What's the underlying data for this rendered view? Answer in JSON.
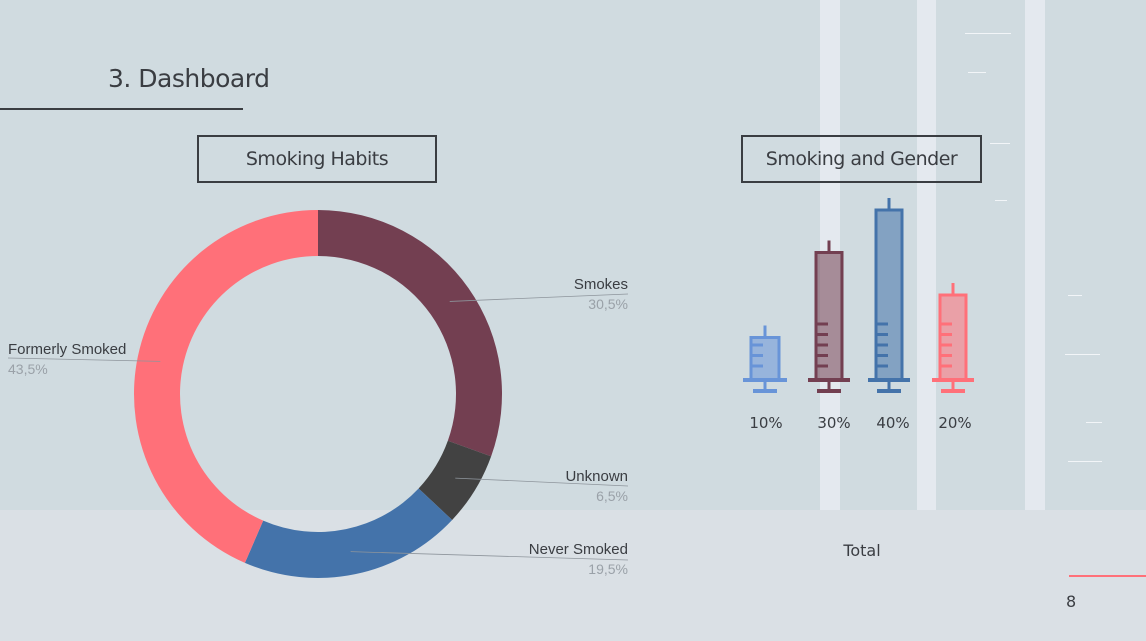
{
  "slide": {
    "section_title": "3. Dashboard",
    "page_number": "8"
  },
  "colors": {
    "background": "#d0dbe0",
    "dark": "#3a3d42",
    "accent": "#ff7079"
  },
  "chart_data": [
    {
      "type": "pie",
      "title": "Smoking Habits",
      "donut": true,
      "slices": [
        {
          "label": "Smokes",
          "value_text": "30,5%",
          "value": 30.5,
          "color": "#733f51"
        },
        {
          "label": "Unknown",
          "value_text": "6,5%",
          "value": 6.5,
          "color": "#424242"
        },
        {
          "label": "Never Smoked",
          "value_text": "19,5%",
          "value": 19.5,
          "color": "#4473aa"
        },
        {
          "label": "Formerly Smoked",
          "value_text": "43,5%",
          "value": 43.5,
          "color": "#ff7079"
        }
      ]
    },
    {
      "type": "bar",
      "title": "Smoking and Gender",
      "xlabel": "Total",
      "marker": "syringe",
      "categories": [
        "10%",
        "30%",
        "40%",
        "20%"
      ],
      "values": [
        10,
        30,
        40,
        20
      ],
      "colors": [
        "#6894d8",
        "#733f51",
        "#4473aa",
        "#ff7079"
      ]
    }
  ]
}
